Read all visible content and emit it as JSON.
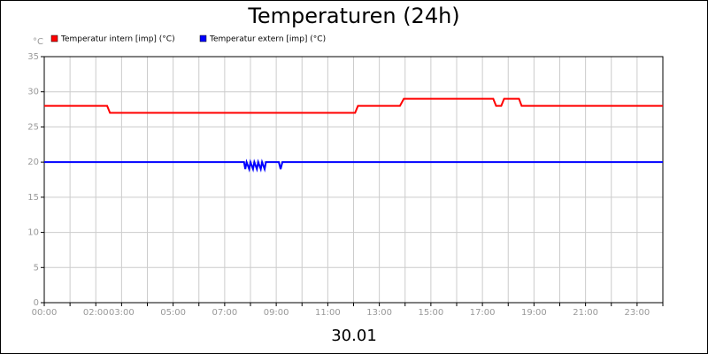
{
  "chart_data": {
    "type": "line",
    "title": "Temperaturen (24h)",
    "x_label": "30.01",
    "y_label": "°C",
    "xlim": [
      0,
      24
    ],
    "ylim": [
      0,
      35
    ],
    "yticks": [
      0,
      5,
      10,
      15,
      20,
      25,
      30,
      35
    ],
    "xticks": [
      {
        "value": 0,
        "label": "00:00"
      },
      {
        "value": 2,
        "label": "02:00"
      },
      {
        "value": 3,
        "label": "03:00"
      },
      {
        "value": 5,
        "label": "05:00"
      },
      {
        "value": 7,
        "label": "07:00"
      },
      {
        "value": 9,
        "label": "09:00"
      },
      {
        "value": 11,
        "label": "11:00"
      },
      {
        "value": 13,
        "label": "13:00"
      },
      {
        "value": 15,
        "label": "15:00"
      },
      {
        "value": 17,
        "label": "17:00"
      },
      {
        "value": 19,
        "label": "19:00"
      },
      {
        "value": 21,
        "label": "21:00"
      },
      {
        "value": 23,
        "label": "23:00"
      }
    ],
    "xminor_ticks": [
      1,
      4,
      6,
      8,
      10,
      12,
      14,
      16,
      18,
      20,
      22,
      24
    ],
    "grid": true,
    "series": [
      {
        "name": "Temperatur intern [imp] (°C)",
        "color": "#ff0000",
        "x": [
          0,
          2.44,
          2.55,
          12.06,
          12.17,
          13.8,
          13.95,
          17.42,
          17.53,
          17.73,
          17.84,
          18.42,
          18.52,
          24
        ],
        "values": [
          28,
          28,
          27,
          27,
          28,
          28,
          29,
          29,
          28,
          28,
          29,
          29,
          28,
          28
        ]
      },
      {
        "name": "Temperatur extern [imp] (°C)",
        "color": "#0000ff",
        "x": [
          0,
          7.75,
          7.8,
          7.85,
          7.95,
          8.0,
          8.1,
          8.15,
          8.25,
          8.3,
          8.4,
          8.45,
          8.55,
          8.6,
          9.1,
          9.17,
          9.24,
          24
        ],
        "values": [
          20,
          20,
          19,
          20,
          19,
          20,
          19,
          20,
          19,
          20,
          19,
          20,
          19,
          20,
          20,
          19,
          20,
          20
        ]
      }
    ]
  }
}
